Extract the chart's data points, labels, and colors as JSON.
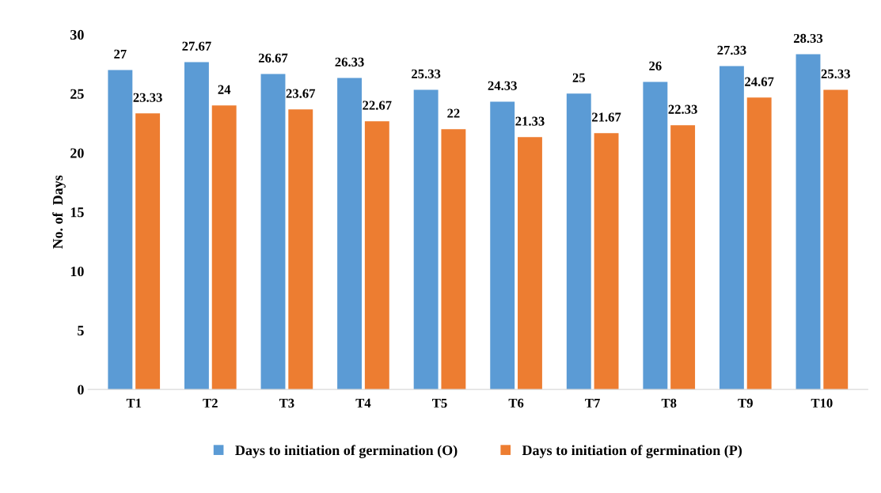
{
  "chart_data": {
    "type": "bar",
    "ylabel": "No. of  Days",
    "categories": [
      "T1",
      "T2",
      "T3",
      "T4",
      "T5",
      "T6",
      "T7",
      "T8",
      "T9",
      "T10"
    ],
    "series": [
      {
        "name": "Days to initiation of germination (O)",
        "color": "#5b9bd5",
        "values": [
          27,
          27.67,
          26.67,
          26.33,
          25.33,
          24.33,
          25,
          26,
          27.33,
          28.33
        ]
      },
      {
        "name": "Days to initiation of germination (P)",
        "color": "#ed7d31",
        "values": [
          23.33,
          24,
          23.67,
          22.67,
          22,
          21.33,
          21.67,
          22.33,
          24.67,
          25.33
        ]
      }
    ],
    "ylim": [
      0,
      30
    ],
    "yticks": [
      0,
      5,
      10,
      15,
      20,
      25,
      30
    ],
    "grid": false,
    "legend": "bottom",
    "data_labels": true
  }
}
